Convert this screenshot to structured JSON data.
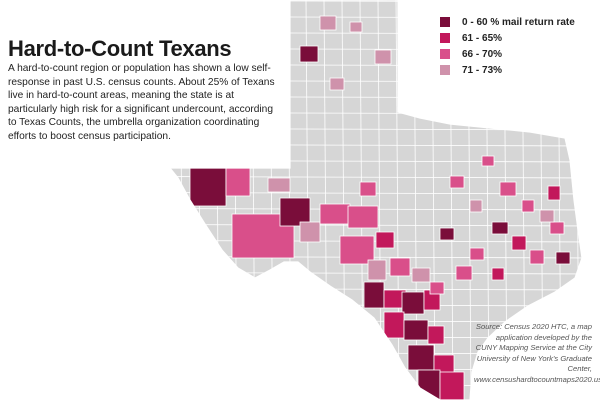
{
  "title": "Hard-to-Count Texans",
  "description": "A hard-to-count region or population has shown a low self-response in past U.S. census counts. About 25% of Texans live in hard-to-count areas, meaning the state is at particularly high risk for a significant undercount, according to Texas Counts, the umbrella organization coordinating efforts to boost census participation.",
  "legend": [
    {
      "label": "0 - 60 % mail return rate",
      "color": "#7a0d3a"
    },
    {
      "label": "61 - 65%",
      "color": "#c2185b"
    },
    {
      "label": "66 - 70%",
      "color": "#d94f8a"
    },
    {
      "label": "71 - 73%",
      "color": "#cf92ab"
    }
  ],
  "default_county_color": "#d6d6d6",
  "county_border_color": "#ffffff",
  "source": "Source: Census 2020 HTC, a map application developed by the CUNY Mapping Service at the City University of New York's Graduate Center, www.censushardtocountmaps2020.us"
}
